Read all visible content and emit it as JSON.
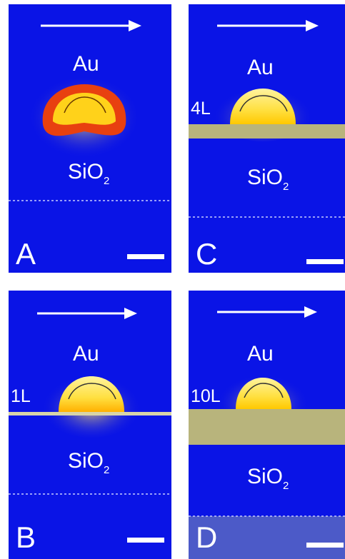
{
  "panels": [
    {
      "letter": "A",
      "material_top": "Au",
      "material_bottom": "SiO",
      "material_bottom_sub": "2",
      "layer_label": ""
    },
    {
      "letter": "C",
      "material_top": "Au",
      "material_bottom": "SiO",
      "material_bottom_sub": "2",
      "layer_label": "4L"
    },
    {
      "letter": "B",
      "material_top": "Au",
      "material_bottom": "SiO",
      "material_bottom_sub": "2",
      "layer_label": "1L"
    },
    {
      "letter": "D",
      "material_top": "Au",
      "material_bottom": "SiO",
      "material_bottom_sub": "2",
      "layer_label": "10L"
    }
  ],
  "colors": {
    "background": "#0a14e6",
    "layer": "#b8b47c",
    "field_hot": "#e62a10",
    "field_warm": "#ffd21a",
    "arrow": "#ffffff"
  }
}
